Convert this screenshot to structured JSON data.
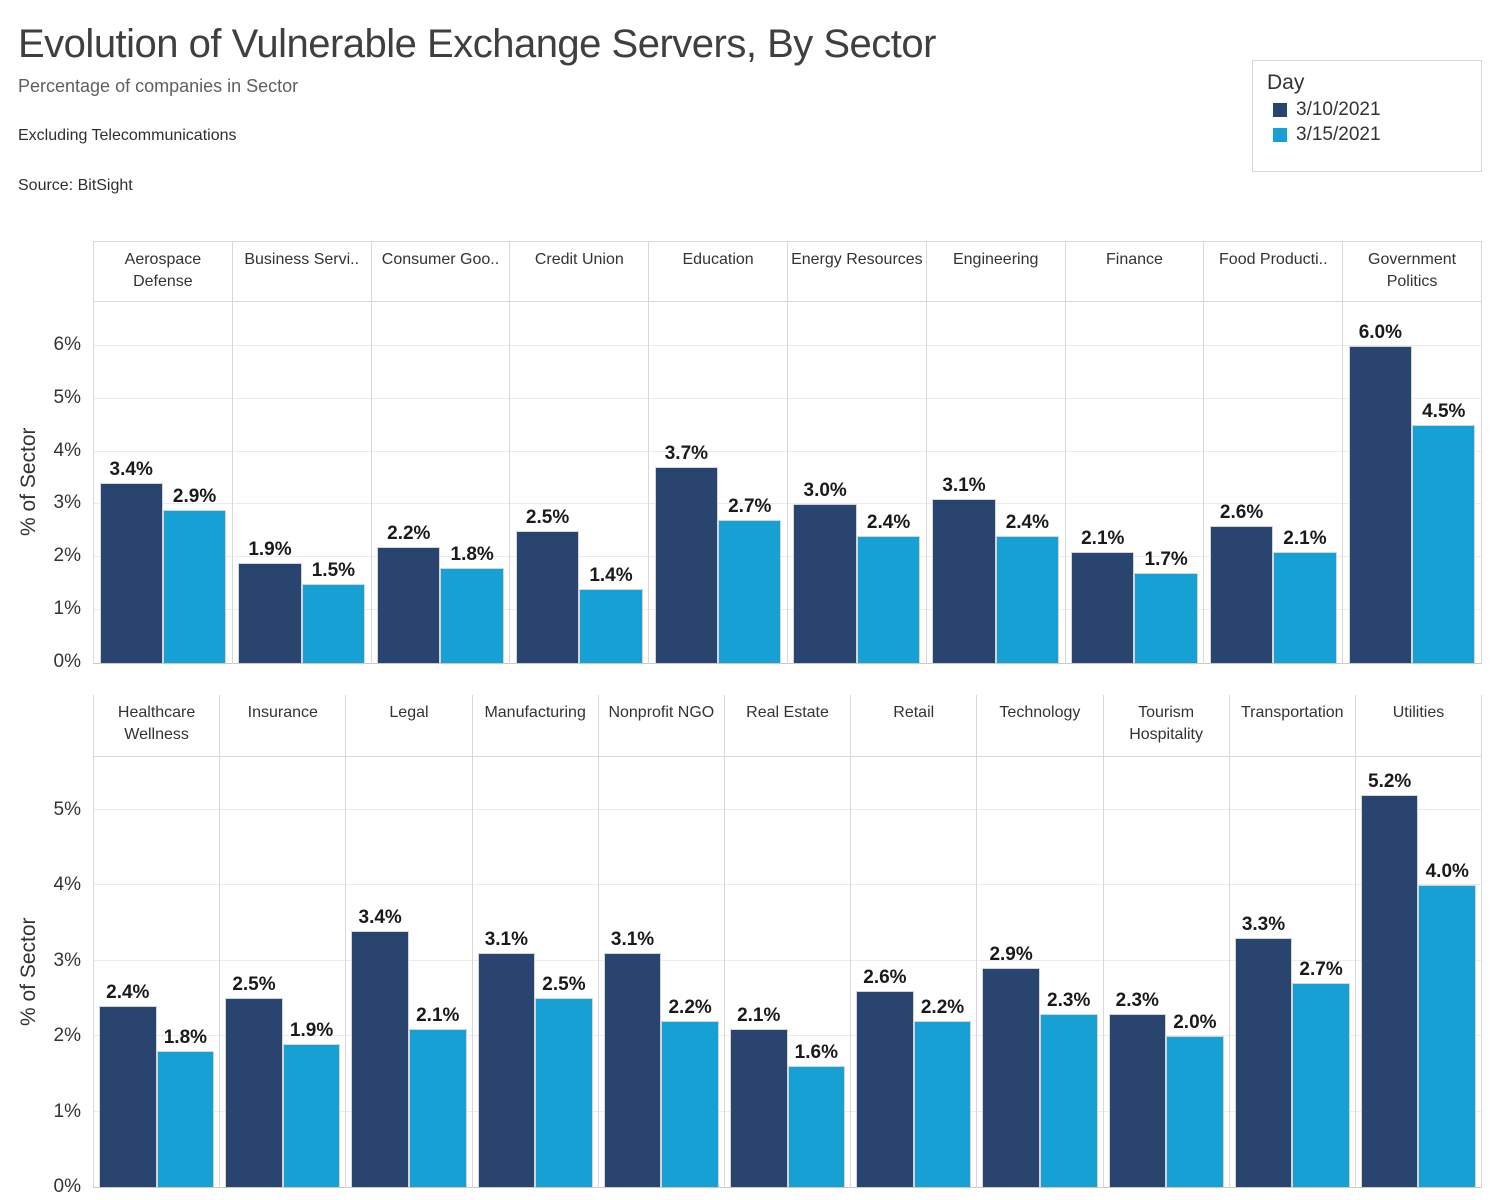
{
  "page": {
    "title": "Evolution of Vulnerable Exchange Servers, By Sector",
    "subtitle": "Percentage of companies in Sector",
    "note": "Excluding Telecommunications",
    "source": "Source: BitSight"
  },
  "legend": {
    "title": "Day",
    "items": [
      {
        "label": "3/10/2021",
        "color": "#28446F"
      },
      {
        "label": "3/15/2021",
        "color": "#17A0D4"
      }
    ]
  },
  "chart_data": {
    "type": "bar",
    "title": "Evolution of Vulnerable Exchange Servers, By Sector",
    "subtitle": "Percentage of companies in Sector",
    "ylabel": "% of Sector",
    "legend_position": "top-right",
    "grid": true,
    "series_names": [
      "3/10/2021",
      "3/15/2021"
    ],
    "colors": [
      "#28446F",
      "#17A0D4"
    ],
    "value_suffix": "%",
    "rows": [
      {
        "ymax": 6.83,
        "ytick_labels": [
          "0%",
          "1%",
          "2%",
          "3%",
          "4%",
          "5%",
          "6%"
        ],
        "sectors": [
          {
            "label": "Aerospace Defense",
            "values": [
              3.4,
              2.9
            ]
          },
          {
            "label": "Business Servi..",
            "values": [
              1.9,
              1.5
            ]
          },
          {
            "label": "Consumer Goo..",
            "values": [
              2.2,
              1.8
            ]
          },
          {
            "label": "Credit Union",
            "values": [
              2.5,
              1.4
            ]
          },
          {
            "label": "Education",
            "values": [
              3.7,
              2.7
            ]
          },
          {
            "label": "Energy Resources",
            "values": [
              3.0,
              2.4
            ]
          },
          {
            "label": "Engineering",
            "values": [
              3.1,
              2.4
            ]
          },
          {
            "label": "Finance",
            "values": [
              2.1,
              1.7
            ]
          },
          {
            "label": "Food Producti..",
            "values": [
              2.6,
              2.1
            ]
          },
          {
            "label": "Government Politics",
            "values": [
              6.0,
              4.5
            ]
          }
        ]
      },
      {
        "ymax": 5.7,
        "ytick_labels": [
          "0%",
          "1%",
          "2%",
          "3%",
          "4%",
          "5%"
        ],
        "sectors": [
          {
            "label": "Healthcare Wellness",
            "values": [
              2.4,
              1.8
            ]
          },
          {
            "label": "Insurance",
            "values": [
              2.5,
              1.9
            ]
          },
          {
            "label": "Legal",
            "values": [
              3.4,
              2.1
            ]
          },
          {
            "label": "Manufacturing",
            "values": [
              3.1,
              2.5
            ]
          },
          {
            "label": "Nonprofit NGO",
            "values": [
              3.1,
              2.2
            ]
          },
          {
            "label": "Real Estate",
            "values": [
              2.1,
              1.6
            ]
          },
          {
            "label": "Retail",
            "values": [
              2.6,
              2.2
            ]
          },
          {
            "label": "Technology",
            "values": [
              2.9,
              2.3
            ]
          },
          {
            "label": "Tourism Hospitality",
            "values": [
              2.3,
              2.0
            ]
          },
          {
            "label": "Transportation",
            "values": [
              3.3,
              2.7
            ]
          },
          {
            "label": "Utilities",
            "values": [
              5.2,
              4.0
            ]
          }
        ]
      }
    ]
  }
}
